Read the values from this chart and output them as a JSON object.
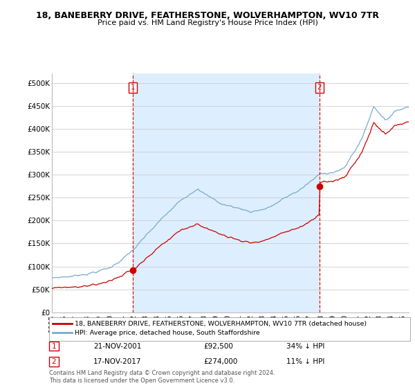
{
  "title1": "18, BANEBERRY DRIVE, FEATHERSTONE, WOLVERHAMPTON, WV10 7TR",
  "title2": "Price paid vs. HM Land Registry's House Price Index (HPI)",
  "ylabel_ticks": [
    "£0",
    "£50K",
    "£100K",
    "£150K",
    "£200K",
    "£250K",
    "£300K",
    "£350K",
    "£400K",
    "£450K",
    "£500K"
  ],
  "ytick_values": [
    0,
    50000,
    100000,
    150000,
    200000,
    250000,
    300000,
    350000,
    400000,
    450000,
    500000
  ],
  "ylim": [
    0,
    520000
  ],
  "xlim_start": 1995.0,
  "xlim_end": 2025.5,
  "sale1_year": 2001.896,
  "sale1_price": 92500,
  "sale2_year": 2017.877,
  "sale2_price": 274000,
  "red_line_color": "#cc0000",
  "blue_line_color": "#7aaacc",
  "shade_color": "#ddeeff",
  "legend_label1": "18, BANEBERRY DRIVE, FEATHERSTONE, WOLVERHAMPTON, WV10 7TR (detached house)",
  "legend_label2": "HPI: Average price, detached house, South Staffordshire",
  "note1_label": "1",
  "note1_date": "21-NOV-2001",
  "note1_price": "£92,500",
  "note1_text": "34% ↓ HPI",
  "note2_label": "2",
  "note2_date": "17-NOV-2017",
  "note2_price": "£274,000",
  "note2_text": "11% ↓ HPI",
  "footnote": "Contains HM Land Registry data © Crown copyright and database right 2024.\nThis data is licensed under the Open Government Licence v3.0.",
  "background_color": "#ffffff",
  "grid_color": "#cccccc"
}
